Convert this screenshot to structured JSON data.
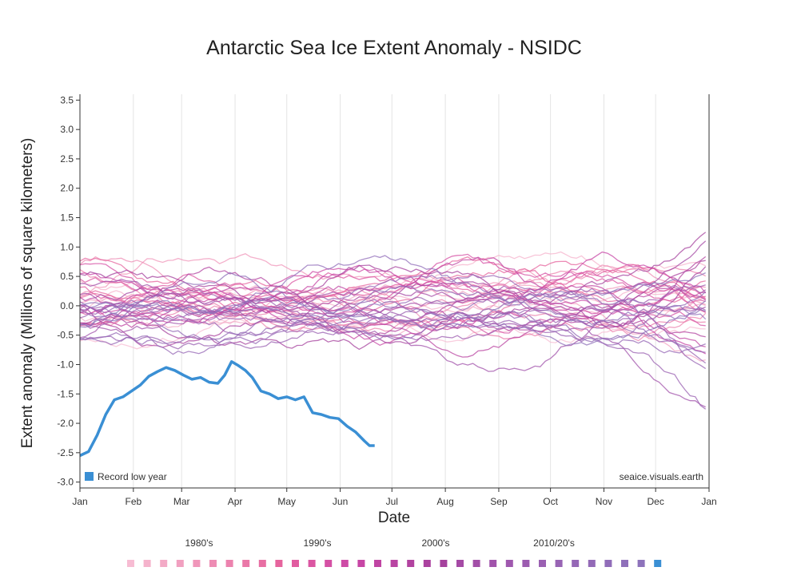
{
  "chart_data": {
    "type": "line",
    "title": "Antarctic Sea Ice Extent Anomaly - NSIDC",
    "xlabel": "Date",
    "ylabel": "Extent anomaly (Millions of square kilometers)",
    "ylim": [
      -3.1,
      3.6
    ],
    "yticks": [
      3.5,
      3.0,
      2.5,
      2.0,
      1.5,
      1.0,
      0.5,
      0.0,
      -0.5,
      -1.0,
      -1.5,
      -2.0,
      -2.5,
      -3.0
    ],
    "ytick_labels": [
      "3.5",
      "3.0",
      "2.5",
      "2.0",
      "1.5",
      "1.0",
      "0.5",
      "0.0",
      "-0.5",
      "-1.0",
      "-1.5",
      "-2.0",
      "-2.5",
      "-3.0"
    ],
    "x_months": [
      "Jan",
      "Feb",
      "Mar",
      "Apr",
      "May",
      "Jun",
      "Jul",
      "Aug",
      "Sep",
      "Oct",
      "Nov",
      "Dec",
      "Jan"
    ],
    "x_month_days": [
      0,
      31,
      59,
      90,
      120,
      151,
      181,
      212,
      243,
      273,
      304,
      334,
      365
    ],
    "grid": true,
    "legend": {
      "label": "Record low year",
      "color": "#3a8fd4",
      "placement": "bottom-left"
    },
    "watermark": "seaice.visuals.earth",
    "record_low_series": {
      "name": "Record low year",
      "color": "#3a8fd4",
      "days": [
        0,
        5,
        10,
        15,
        20,
        25,
        30,
        35,
        40,
        45,
        50,
        55,
        60,
        65,
        70,
        75,
        80,
        84,
        88,
        92,
        96,
        100,
        105,
        110,
        115,
        120,
        125,
        130,
        135,
        140,
        145,
        150,
        155,
        160,
        165,
        168,
        171
      ],
      "values": [
        -2.55,
        -2.48,
        -2.2,
        -1.85,
        -1.6,
        -1.55,
        -1.45,
        -1.35,
        -1.2,
        -1.12,
        -1.05,
        -1.1,
        -1.18,
        -1.25,
        -1.22,
        -1.3,
        -1.32,
        -1.18,
        -0.95,
        -1.02,
        -1.1,
        -1.22,
        -1.45,
        -1.5,
        -1.58,
        -1.55,
        -1.6,
        -1.55,
        -1.82,
        -1.85,
        -1.9,
        -1.92,
        -2.05,
        -2.15,
        -2.3,
        -2.38,
        -2.38
      ]
    },
    "historical_series_note": "~44 yearly anomaly series 1979-2022, pink (older) to purple (newer)",
    "decade_legend": {
      "labels": [
        "1980's",
        "1990's",
        "2000's",
        "2010/20's"
      ],
      "swatch_colors": [
        "#f7bcd3",
        "#f5b3cc",
        "#f3aac6",
        "#f1a0c0",
        "#f096ba",
        "#ee8cb4",
        "#ec82ae",
        "#ea78a8",
        "#e86ea3",
        "#e6649d",
        "#e15ca0",
        "#db56a2",
        "#d550a4",
        "#ce4aa6",
        "#c746a5",
        "#c045a3",
        "#b944a2",
        "#b243a0",
        "#ab429f",
        "#a5419d",
        "#a54aa5",
        "#a34fa8",
        "#a153ab",
        "#9f58ae",
        "#9c5cb0",
        "#9a60b2",
        "#9864b4",
        "#9567b6",
        "#936ab7",
        "#916db9",
        "#8f70ba",
        "#8d73bb",
        "#3a8fd4"
      ]
    }
  }
}
